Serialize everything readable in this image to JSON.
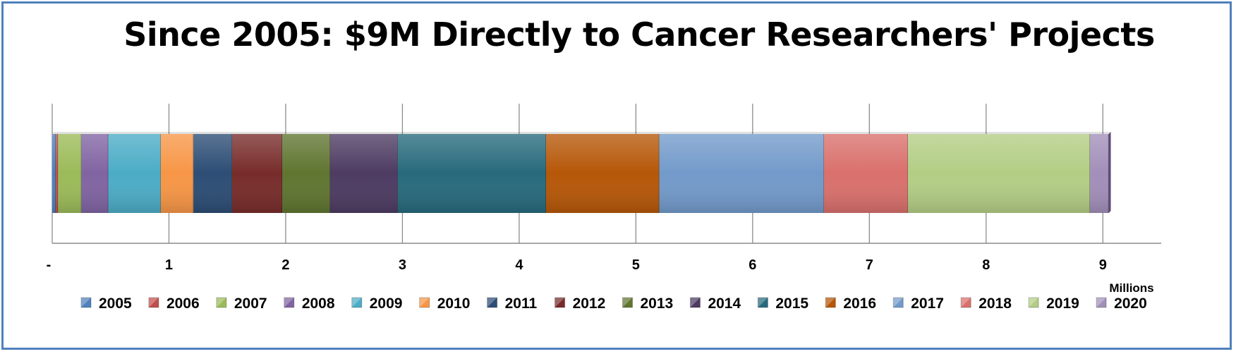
{
  "chart_data": {
    "type": "bar",
    "orientation": "horizontal",
    "stacked": true,
    "title": "Since 2005: $9M Directly to Cancer Researchers' Projects",
    "x_unit_label": "Millions",
    "xlim": [
      0,
      9.5
    ],
    "x_ticks": [
      {
        "value": 0,
        "label": "-"
      },
      {
        "value": 1,
        "label": "1"
      },
      {
        "value": 2,
        "label": "2"
      },
      {
        "value": 3,
        "label": "3"
      },
      {
        "value": 4,
        "label": "4"
      },
      {
        "value": 5,
        "label": "5"
      },
      {
        "value": 6,
        "label": "6"
      },
      {
        "value": 7,
        "label": "7"
      },
      {
        "value": 8,
        "label": "8"
      },
      {
        "value": 9,
        "label": "9"
      }
    ],
    "grid": "vertical",
    "legend_position": "bottom",
    "series": [
      {
        "name": "2005",
        "value": 0.03,
        "color": "#4F81BD"
      },
      {
        "name": "2006",
        "value": 0.02,
        "color": "#C0504D"
      },
      {
        "name": "2007",
        "value": 0.2,
        "color": "#9BBB59"
      },
      {
        "name": "2008",
        "value": 0.23,
        "color": "#8064A2"
      },
      {
        "name": "2009",
        "value": 0.45,
        "color": "#4BACC6"
      },
      {
        "name": "2010",
        "value": 0.28,
        "color": "#F79646"
      },
      {
        "name": "2011",
        "value": 0.33,
        "color": "#2C4D75"
      },
      {
        "name": "2012",
        "value": 0.43,
        "color": "#772C2A"
      },
      {
        "name": "2013",
        "value": 0.41,
        "color": "#5F7530"
      },
      {
        "name": "2014",
        "value": 0.58,
        "color": "#4D3B62"
      },
      {
        "name": "2015",
        "value": 1.27,
        "color": "#276A7C"
      },
      {
        "name": "2016",
        "value": 0.97,
        "color": "#B65708"
      },
      {
        "name": "2017",
        "value": 1.41,
        "color": "#729ACA"
      },
      {
        "name": "2018",
        "value": 0.72,
        "color": "#D9706C"
      },
      {
        "name": "2019",
        "value": 1.56,
        "color": "#B3CD84"
      },
      {
        "name": "2020",
        "value": 0.16,
        "color": "#A28FBA"
      }
    ]
  }
}
